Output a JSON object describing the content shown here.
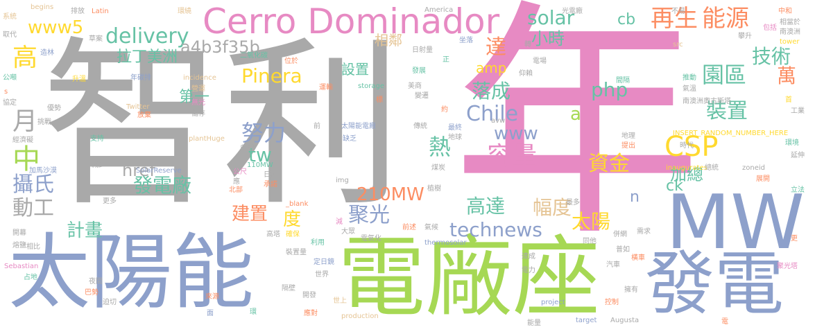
{
  "palette": {
    "gray": "#a9a9a9",
    "pink": "#e78ac3",
    "blue": "#8da0cb",
    "green": "#a6d854",
    "teal": "#66c2a5",
    "orange": "#fc8d62",
    "yellow": "#ffd92f",
    "tan": "#e5c494"
  },
  "words": [
    {
      "text": "智利",
      "color": "gray"
    },
    {
      "text": "年",
      "color": "pink"
    },
    {
      "text": "電廠座",
      "color": "green"
    },
    {
      "text": "太陽能",
      "color": "blue"
    },
    {
      "text": "MW",
      "color": "blue"
    },
    {
      "text": "發電",
      "color": "blue"
    },
    {
      "text": "Cerro Dominador",
      "color": "pink"
    },
    {
      "text": "再生",
      "color": "orange"
    },
    {
      "text": "能源",
      "color": "orange"
    },
    {
      "text": "www5",
      "color": "yellow"
    },
    {
      "text": "delivery",
      "color": "teal"
    },
    {
      "text": "拉丁美洲",
      "color": "teal"
    },
    {
      "text": "a4b3f35b",
      "color": "gray"
    },
    {
      "text": "solar",
      "color": "teal"
    },
    {
      "text": "小時",
      "color": "teal"
    },
    {
      "text": "cb",
      "color": "teal"
    },
    {
      "text": "技術",
      "color": "teal"
    },
    {
      "text": "園區",
      "color": "teal"
    },
    {
      "text": "達",
      "color": "orange"
    },
    {
      "text": "Pinera",
      "color": "yellow"
    },
    {
      "text": "php",
      "color": "teal"
    },
    {
      "text": "落成",
      "color": "teal"
    },
    {
      "text": "萬",
      "color": "orange"
    },
    {
      "text": "Chile",
      "color": "blue"
    },
    {
      "text": "裝置",
      "color": "teal"
    },
    {
      "text": "www",
      "color": "blue"
    },
    {
      "text": "努力",
      "color": "blue"
    },
    {
      "text": "CSP",
      "color": "yellow"
    },
    {
      "text": "容量",
      "color": "pink"
    },
    {
      "text": "熱",
      "color": "teal"
    },
    {
      "text": "tw",
      "color": "teal"
    },
    {
      "text": "資金",
      "color": "yellow"
    },
    {
      "text": "加總",
      "color": "teal"
    },
    {
      "text": "href",
      "color": "gray"
    },
    {
      "text": "攝氏",
      "color": "blue"
    },
    {
      "text": "動工",
      "color": "gray"
    },
    {
      "text": "發電廠",
      "color": "teal"
    },
    {
      "text": "210MW",
      "color": "orange"
    },
    {
      "text": "建置",
      "color": "orange"
    },
    {
      "text": "度",
      "color": "yellow"
    },
    {
      "text": "聚光",
      "color": "blue"
    },
    {
      "text": "高達",
      "color": "teal"
    },
    {
      "text": "幅度",
      "color": "tan"
    },
    {
      "text": "太陽",
      "color": "yellow"
    },
    {
      "text": "technews",
      "color": "blue"
    },
    {
      "text": "計畫",
      "color": "teal"
    },
    {
      "text": "中",
      "color": "green"
    },
    {
      "text": "月",
      "color": "gray"
    },
    {
      "text": "高",
      "color": "yellow"
    },
    {
      "text": "設置",
      "color": "teal"
    },
    {
      "text": "第一",
      "color": "teal"
    },
    {
      "text": "相鄰",
      "color": "tan"
    },
    {
      "text": "amp",
      "color": "yellow"
    },
    {
      "text": "ck",
      "color": "teal"
    },
    {
      "text": "n",
      "color": "blue"
    },
    {
      "text": "a",
      "color": "green"
    },
    {
      "text": "系統",
      "color": "tan"
    },
    {
      "text": "begins",
      "color": "tan"
    },
    {
      "text": "排放",
      "color": "gray"
    },
    {
      "text": "Latin",
      "color": "orange"
    },
    {
      "text": "America",
      "color": "gray"
    },
    {
      "text": "環繞",
      "color": "tan"
    },
    {
      "text": "光電廠",
      "color": "gray"
    },
    {
      "text": "不易",
      "color": "gray"
    },
    {
      "text": "中和",
      "color": "orange"
    },
    {
      "text": "相當於",
      "color": "gray"
    },
    {
      "text": "南澳洲",
      "color": "gray"
    },
    {
      "text": "包括",
      "color": "pink"
    },
    {
      "text": "攀升",
      "color": "gray"
    },
    {
      "text": "tower",
      "color": "yellow"
    },
    {
      "text": "src",
      "color": "tan"
    },
    {
      "text": "坐落",
      "color": "blue"
    },
    {
      "text": "日射量",
      "color": "gray"
    },
    {
      "text": "二氧化碳",
      "color": "teal"
    },
    {
      "text": "位於",
      "color": "orange"
    },
    {
      "text": "草案",
      "color": "gray"
    },
    {
      "text": "取代",
      "color": "gray"
    },
    {
      "text": "造林",
      "color": "blue"
    },
    {
      "text": "升溫",
      "color": "yellow"
    },
    {
      "text": "年碳排",
      "color": "blue"
    },
    {
      "text": "incidence",
      "color": "tan"
    },
    {
      "text": "營運",
      "color": "tan"
    },
    {
      "text": "運輸",
      "color": "orange"
    },
    {
      "text": "storage",
      "color": "teal"
    },
    {
      "text": "美商",
      "color": "gray"
    },
    {
      "text": "發展",
      "color": "teal"
    },
    {
      "text": "變遷",
      "color": "gray"
    },
    {
      "text": "仰賴",
      "color": "gray"
    },
    {
      "text": "推動",
      "color": "teal"
    },
    {
      "text": "氣溫",
      "color": "gray"
    },
    {
      "text": "首",
      "color": "yellow"
    },
    {
      "text": "工業",
      "color": "gray"
    },
    {
      "text": "南澳洲奧古斯塔",
      "color": "gray"
    },
    {
      "text": "公噸",
      "color": "teal"
    },
    {
      "text": "協定",
      "color": "gray"
    },
    {
      "text": "優勢",
      "color": "gray"
    },
    {
      "text": "Twitter",
      "color": "tan"
    },
    {
      "text": "無光",
      "color": "pink"
    },
    {
      "text": "儲存",
      "color": "gray"
    },
    {
      "text": "放棄",
      "color": "orange"
    },
    {
      "text": "挑戰",
      "color": "gray"
    },
    {
      "text": "經濟礙",
      "color": "gray"
    },
    {
      "text": "支持",
      "color": "teal"
    },
    {
      "text": "plantHuge",
      "color": "tan"
    },
    {
      "text": "典禮",
      "color": "gray"
    },
    {
      "text": "太陽能電廠",
      "color": "blue"
    },
    {
      "text": "傳統",
      "color": "gray"
    },
    {
      "text": "缺乏",
      "color": "blue"
    },
    {
      "text": "最終",
      "color": "blue"
    },
    {
      "text": "地球",
      "color": "gray"
    },
    {
      "text": "avw",
      "color": "gray"
    },
    {
      "text": "地理",
      "color": "gray"
    },
    {
      "text": "INSERT_RANDOM_NUMBER_HERE",
      "color": "yellow"
    },
    {
      "text": "提出",
      "color": "orange"
    },
    {
      "text": "時代",
      "color": "gray"
    },
    {
      "text": "環境",
      "color": "teal"
    },
    {
      "text": "延伸",
      "color": "gray"
    },
    {
      "text": "加馬沙漠",
      "color": "blue"
    },
    {
      "text": "SolarReserve",
      "color": "blue"
    },
    {
      "text": "減少",
      "color": "gray"
    },
    {
      "text": "110MW",
      "color": "teal"
    },
    {
      "text": "公尺",
      "color": "pink"
    },
    {
      "text": "日照",
      "color": "gray"
    },
    {
      "text": "煤炭",
      "color": "gray"
    },
    {
      "text": "inaugurates",
      "color": "yellow"
    },
    {
      "text": "總統",
      "color": "gray"
    },
    {
      "text": "zoneid",
      "color": "gray"
    },
    {
      "text": "展開",
      "color": "orange"
    },
    {
      "text": "立法",
      "color": "teal"
    },
    {
      "text": "應",
      "color": "gray"
    },
    {
      "text": "北部",
      "color": "orange"
    },
    {
      "text": "承諾",
      "color": "orange"
    },
    {
      "text": "img",
      "color": "gray"
    },
    {
      "text": "植樹",
      "color": "gray"
    },
    {
      "text": "更多",
      "color": "gray"
    },
    {
      "text": "_blank",
      "color": "orange"
    },
    {
      "text": "最多",
      "color": "gray"
    },
    {
      "text": "開幕",
      "color": "gray"
    },
    {
      "text": "減",
      "color": "pink"
    },
    {
      "text": "前述",
      "color": "orange"
    },
    {
      "text": "氣候",
      "color": "gray"
    },
    {
      "text": "熔鹽",
      "color": "gray"
    },
    {
      "text": "相比",
      "color": "gray"
    },
    {
      "text": "高塔",
      "color": "gray"
    },
    {
      "text": "確保",
      "color": "yellow"
    },
    {
      "text": "利用",
      "color": "teal"
    },
    {
      "text": "大眾",
      "color": "gray"
    },
    {
      "text": "電氣化",
      "color": "gray"
    },
    {
      "text": "thermosolar",
      "color": "blue"
    },
    {
      "text": "併網",
      "color": "gray"
    },
    {
      "text": "需求",
      "color": "gray"
    },
    {
      "text": "同他",
      "color": "gray"
    },
    {
      "text": "普如",
      "color": "gray"
    },
    {
      "text": "更",
      "color": "orange"
    },
    {
      "text": "Sebastian",
      "color": "pink"
    },
    {
      "text": "裝置量",
      "color": "gray"
    },
    {
      "text": "定日鏡",
      "color": "blue"
    },
    {
      "text": "達成",
      "color": "gray"
    },
    {
      "text": "汽車",
      "color": "gray"
    },
    {
      "text": "橫車",
      "color": "orange"
    },
    {
      "text": "電力",
      "color": "gray"
    },
    {
      "text": "占地",
      "color": "teal"
    },
    {
      "text": "世界",
      "color": "gray"
    },
    {
      "text": "夜間",
      "color": "gray"
    },
    {
      "text": "巴勢",
      "color": "orange"
    },
    {
      "text": "迫切",
      "color": "gray"
    },
    {
      "text": "來源",
      "color": "orange"
    },
    {
      "text": "隔壁",
      "color": "gray"
    },
    {
      "text": "開發",
      "color": "gray"
    },
    {
      "text": "世上",
      "color": "tan"
    },
    {
      "text": "project",
      "color": "blue"
    },
    {
      "text": "控制",
      "color": "orange"
    },
    {
      "text": "擁有",
      "color": "gray"
    },
    {
      "text": "面",
      "color": "blue"
    },
    {
      "text": "應對",
      "color": "orange"
    },
    {
      "text": "production",
      "color": "tan"
    },
    {
      "text": "target",
      "color": "blue"
    },
    {
      "text": "Augusta",
      "color": "gray"
    },
    {
      "text": "能量",
      "color": "gray"
    },
    {
      "text": "電",
      "color": "orange"
    },
    {
      "text": "環",
      "color": "teal"
    },
    {
      "text": "約",
      "color": "orange"
    },
    {
      "text": "正",
      "color": "teal"
    },
    {
      "text": "s",
      "color": "orange"
    },
    {
      "text": "標",
      "color": "orange"
    },
    {
      "text": "電場",
      "color": "gray"
    },
    {
      "text": "間隔",
      "color": "teal"
    },
    {
      "text": "轉",
      "color": "gray"
    },
    {
      "text": "前",
      "color": "gray"
    },
    {
      "text": "聚光塔",
      "color": "pink"
    }
  ]
}
